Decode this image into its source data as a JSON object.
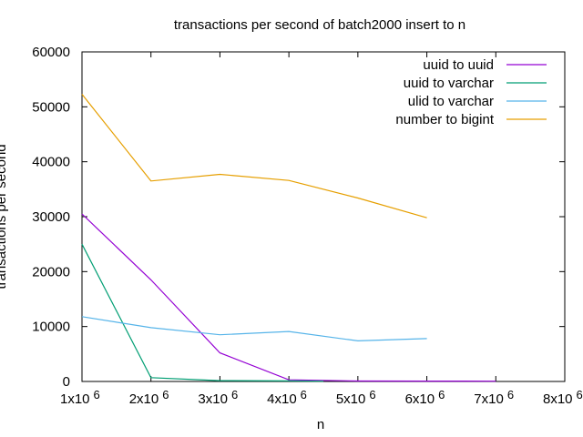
{
  "chart_data": {
    "type": "line",
    "title": "transactions per second of batch2000 insert to n",
    "xlabel": "n",
    "ylabel": "transactions per second",
    "xlim": [
      1000000,
      8000000
    ],
    "ylim": [
      0,
      60000
    ],
    "x_ticks": [
      {
        "value": 1000000,
        "base": "1x10",
        "exp": "6"
      },
      {
        "value": 2000000,
        "base": "2x10",
        "exp": "6"
      },
      {
        "value": 3000000,
        "base": "3x10",
        "exp": "6"
      },
      {
        "value": 4000000,
        "base": "4x10",
        "exp": "6"
      },
      {
        "value": 5000000,
        "base": "5x10",
        "exp": "6"
      },
      {
        "value": 6000000,
        "base": "6x10",
        "exp": "6"
      },
      {
        "value": 7000000,
        "base": "7x10",
        "exp": "6"
      },
      {
        "value": 8000000,
        "base": "8x10",
        "exp": "6"
      }
    ],
    "y_ticks": [
      {
        "value": 0,
        "label": "0"
      },
      {
        "value": 10000,
        "label": "10000"
      },
      {
        "value": 20000,
        "label": "20000"
      },
      {
        "value": 30000,
        "label": "30000"
      },
      {
        "value": 40000,
        "label": "40000"
      },
      {
        "value": 50000,
        "label": "50000"
      },
      {
        "value": 60000,
        "label": "60000"
      }
    ],
    "grid": false,
    "legend_position": "top-right",
    "series": [
      {
        "name": "uuid to uuid",
        "color": "#9400d3",
        "x": [
          1000000,
          2000000,
          3000000,
          4000000,
          5000000,
          6000000,
          7000000
        ],
        "y": [
          30500,
          18500,
          5200,
          300,
          80,
          60,
          50
        ]
      },
      {
        "name": "uuid to varchar",
        "color": "#009e73",
        "x": [
          1000000,
          2000000,
          3000000,
          4000000,
          4500000
        ],
        "y": [
          25000,
          700,
          150,
          100,
          50
        ]
      },
      {
        "name": "ulid to varchar",
        "color": "#56b4e9",
        "x": [
          1000000,
          2000000,
          3000000,
          4000000,
          5000000,
          6000000
        ],
        "y": [
          11800,
          9800,
          8500,
          9100,
          7400,
          7800
        ]
      },
      {
        "name": "number to bigint",
        "color": "#e69f00",
        "x": [
          1000000,
          2000000,
          3000000,
          4000000,
          5000000,
          6000000
        ],
        "y": [
          52300,
          36500,
          37700,
          36600,
          33400,
          29800
        ]
      }
    ]
  }
}
